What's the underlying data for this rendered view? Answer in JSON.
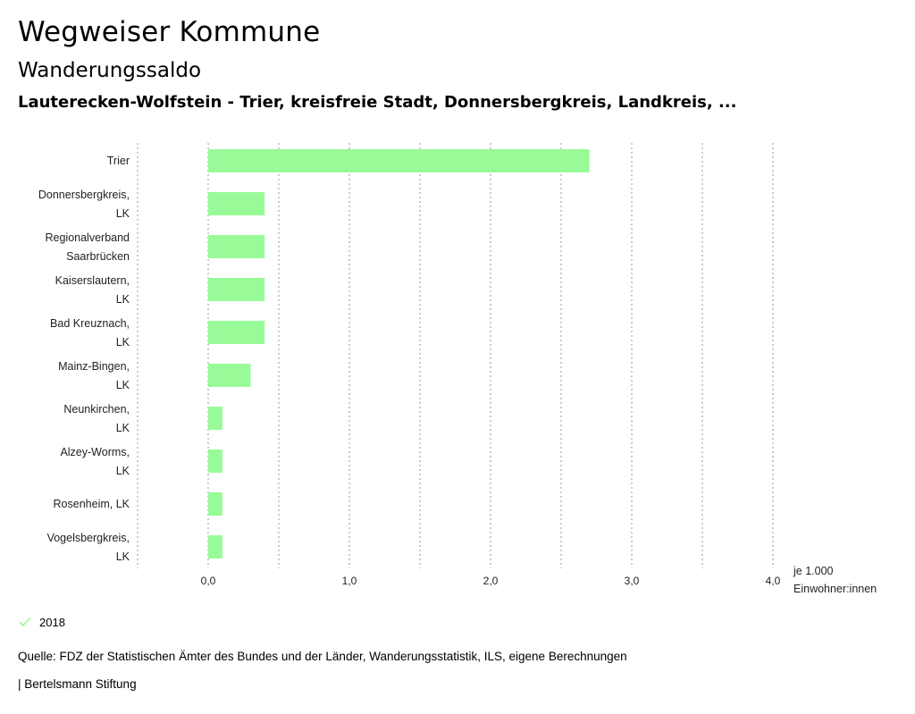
{
  "header": {
    "title": "Wegweiser Kommune",
    "subtitle": "Wanderungssaldo",
    "context": "Lauterecken-Wolfstein - Trier, kreisfreie Stadt, Donnersbergkreis, Landkreis, ..."
  },
  "legend": {
    "items": [
      {
        "label": "2018",
        "color": "#98fb98",
        "icon": "check-icon"
      }
    ]
  },
  "footer": {
    "source": "Quelle: FDZ der Statistischen Ämter des Bundes und der Länder, Wanderungsstatistik, ILS, eigene Berechnungen",
    "credit": "| Bertelsmann Stiftung"
  },
  "chart_data": {
    "type": "bar",
    "orientation": "horizontal",
    "categories": [
      [
        "Trier"
      ],
      [
        "Donnersbergkreis,",
        "LK"
      ],
      [
        "Regionalverband",
        "Saarbrücken"
      ],
      [
        "Kaiserslautern,",
        "LK"
      ],
      [
        "Bad Kreuznach,",
        "LK"
      ],
      [
        "Mainz-Bingen,",
        "LK"
      ],
      [
        "Neunkirchen,",
        "LK"
      ],
      [
        "Alzey-Worms,",
        "LK"
      ],
      [
        "Rosenheim, LK"
      ],
      [
        "Vogelsbergkreis,",
        "LK"
      ]
    ],
    "series": [
      {
        "name": "2018",
        "color": "#98fb98",
        "values": [
          2.7,
          0.4,
          0.4,
          0.4,
          0.4,
          0.3,
          0.1,
          0.1,
          0.1,
          0.1
        ]
      }
    ],
    "xlim": [
      -0.5,
      4.0
    ],
    "xticks": [
      0,
      1,
      2,
      3,
      4
    ],
    "xtick_labels": [
      "0,0",
      "1,0",
      "2,0",
      "3,0",
      "4,0"
    ],
    "gridlines": [
      -0.5,
      0,
      0.5,
      1,
      1.5,
      2,
      2.5,
      3,
      3.5,
      4
    ],
    "xlabel": [
      "je 1.000",
      "Einwohner:innen"
    ],
    "grid": true
  }
}
